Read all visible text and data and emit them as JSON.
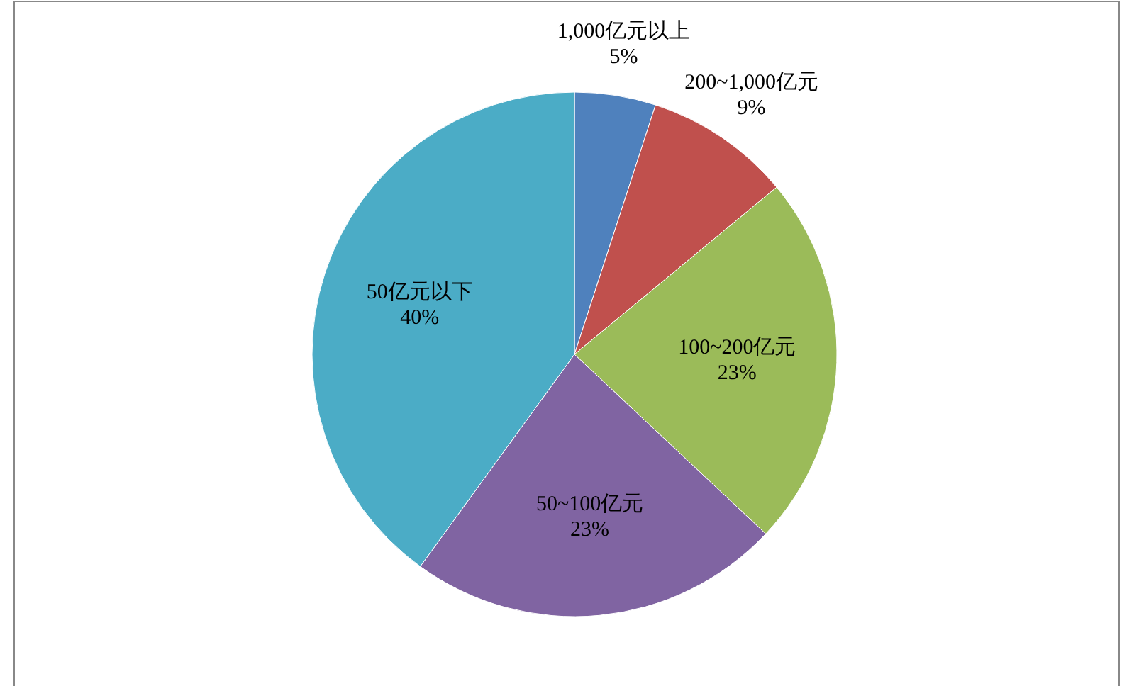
{
  "chart_data": {
    "type": "pie",
    "categories": [
      "1,000亿元以上",
      "200~1,000亿元",
      "100~200亿元",
      "50~100亿元",
      "50亿元以下"
    ],
    "values": [
      5,
      9,
      23,
      23,
      40
    ],
    "colors": [
      "#4f81bd",
      "#c0504d",
      "#9bbb59",
      "#8064a2",
      "#4bacc6"
    ],
    "value_labels": [
      "5%",
      "9%",
      "23%",
      "23%",
      "40%"
    ]
  }
}
